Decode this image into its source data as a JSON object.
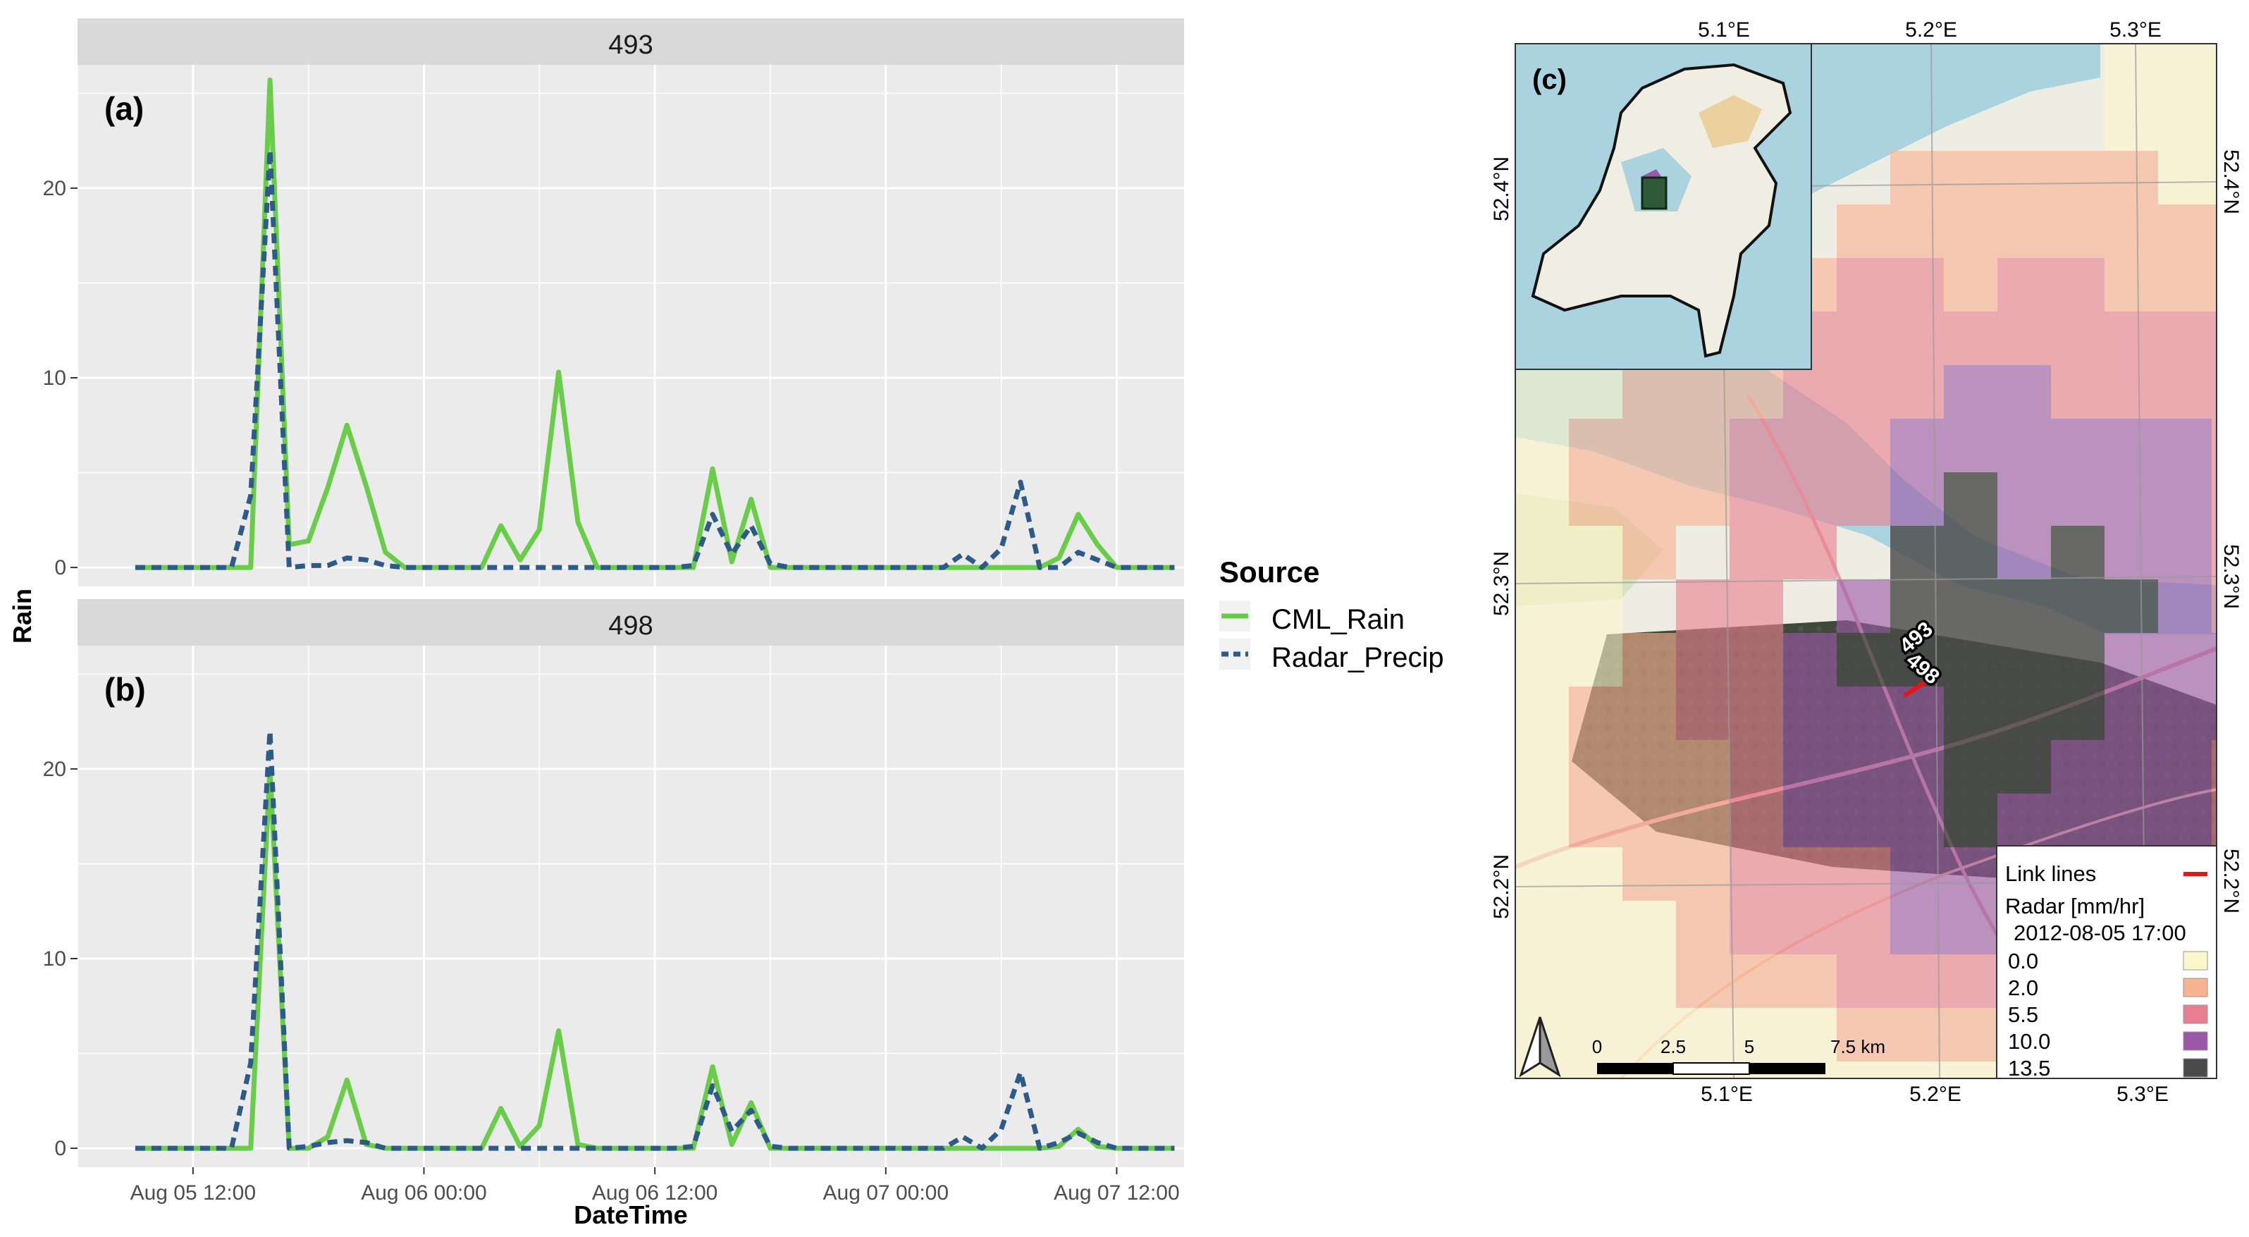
{
  "chart_data": [
    {
      "type": "line",
      "panel_title": "493",
      "panel_tag": "(a)",
      "ylabel": "Rain",
      "xlabel": "DateTime",
      "ylim": [
        -1,
        26.5
      ],
      "yticks": [
        0,
        10,
        20
      ],
      "xlim": [
        0,
        57.5
      ],
      "xtick_positions": [
        6,
        18,
        30,
        42,
        54
      ],
      "xtick_labels": [
        "Aug 05 12:00",
        "Aug 06 00:00",
        "Aug 06 12:00",
        "Aug 07 00:00",
        "Aug 07 12:00"
      ],
      "x": [
        3,
        4,
        5,
        6,
        7,
        8,
        9,
        10,
        11,
        12,
        13,
        14,
        15,
        16,
        17,
        18,
        19,
        20,
        21,
        22,
        23,
        24,
        25,
        26,
        27,
        28,
        29,
        30,
        31,
        32,
        33,
        34,
        35,
        36,
        37,
        38,
        39,
        40,
        41,
        42,
        43,
        44,
        45,
        46,
        47,
        48,
        49,
        50,
        51,
        52,
        53,
        54,
        55,
        56,
        57
      ],
      "series": [
        {
          "name": "CML_Rain",
          "color": "#6ACD4A",
          "dash": "solid",
          "values": [
            0,
            0,
            0,
            0,
            0,
            0,
            0,
            25.7,
            1.2,
            1.4,
            4.2,
            7.5,
            4.3,
            0.8,
            0,
            0,
            0,
            0,
            0,
            2.2,
            0.4,
            2.0,
            10.3,
            2.4,
            0,
            0,
            0,
            0,
            0,
            0,
            5.2,
            0.3,
            3.6,
            0,
            0,
            0,
            0,
            0,
            0,
            0,
            0,
            0,
            0,
            0,
            0,
            0,
            0,
            0,
            0.5,
            2.8,
            1.2,
            0,
            0,
            0,
            0
          ]
        },
        {
          "name": "Radar_Precip",
          "color": "#2E5A87",
          "dash": "dashed",
          "values": [
            0,
            0,
            0,
            0,
            0,
            0,
            3.8,
            22.0,
            0,
            0.1,
            0.1,
            0.5,
            0.4,
            0.1,
            0,
            0,
            0,
            0,
            0,
            0,
            0,
            0,
            0,
            0,
            0,
            0,
            0,
            0,
            0,
            0.1,
            2.8,
            0.7,
            2.2,
            0.2,
            0,
            0,
            0,
            0,
            0,
            0,
            0,
            0,
            0,
            0.7,
            0,
            1.0,
            4.5,
            0,
            0,
            0.8,
            0.4,
            0,
            0,
            0,
            0
          ]
        }
      ]
    },
    {
      "type": "line",
      "panel_title": "498",
      "panel_tag": "(b)",
      "ylabel": "Rain",
      "xlabel": "DateTime",
      "ylim": [
        -1,
        26.5
      ],
      "yticks": [
        0,
        10,
        20
      ],
      "xlim": [
        0,
        57.5
      ],
      "xtick_positions": [
        6,
        18,
        30,
        42,
        54
      ],
      "xtick_labels": [
        "Aug 05 12:00",
        "Aug 06 00:00",
        "Aug 06 12:00",
        "Aug 07 00:00",
        "Aug 07 12:00"
      ],
      "x": [
        3,
        4,
        5,
        6,
        7,
        8,
        9,
        10,
        11,
        12,
        13,
        14,
        15,
        16,
        17,
        18,
        19,
        20,
        21,
        22,
        23,
        24,
        25,
        26,
        27,
        28,
        29,
        30,
        31,
        32,
        33,
        34,
        35,
        36,
        37,
        38,
        39,
        40,
        41,
        42,
        43,
        44,
        45,
        46,
        47,
        48,
        49,
        50,
        51,
        52,
        53,
        54,
        55,
        56,
        57
      ],
      "series": [
        {
          "name": "CML_Rain",
          "color": "#6ACD4A",
          "dash": "solid",
          "values": [
            0,
            0,
            0,
            0,
            0,
            0,
            0,
            20.0,
            0,
            0,
            0.6,
            3.6,
            0.2,
            0,
            0,
            0,
            0,
            0,
            0,
            2.1,
            0.1,
            1.2,
            6.2,
            0.2,
            0,
            0,
            0,
            0,
            0,
            0,
            4.3,
            0.2,
            2.4,
            0,
            0,
            0,
            0,
            0,
            0,
            0,
            0,
            0,
            0,
            0,
            0,
            0,
            0,
            0,
            0.1,
            1.0,
            0.1,
            0,
            0,
            0,
            0
          ]
        },
        {
          "name": "Radar_Precip",
          "color": "#2E5A87",
          "dash": "dashed",
          "values": [
            0,
            0,
            0,
            0,
            0,
            0,
            4.5,
            22.0,
            0,
            0.1,
            0.3,
            0.4,
            0.3,
            0,
            0,
            0,
            0,
            0,
            0,
            0,
            0,
            0,
            0,
            0,
            0,
            0,
            0,
            0,
            0,
            0.1,
            3.3,
            0.9,
            2.0,
            0.1,
            0,
            0,
            0,
            0,
            0,
            0,
            0,
            0,
            0,
            0.6,
            0,
            1.0,
            4.0,
            0,
            0.3,
            0.8,
            0.3,
            0,
            0,
            0,
            0
          ]
        }
      ]
    }
  ],
  "legend": {
    "title": "Source",
    "items": [
      "CML_Rain",
      "Radar_Precip"
    ]
  },
  "map": {
    "panel_tag": "(c)",
    "top_lon_labels": [
      "5.1°E",
      "5.2°E",
      "5.3°E"
    ],
    "bottom_lon_labels": [
      "5.1°E",
      "5.2°E",
      "5.3°E"
    ],
    "left_lat_labels": [
      "52.4°N",
      "52.3°N",
      "52.2°N"
    ],
    "right_lat_labels": [
      "52.4°N",
      "52.3°N",
      "52.2°N"
    ],
    "link_labels": [
      "493",
      "498"
    ],
    "scale_labels": [
      "0",
      "2.5",
      "5",
      "7.5 km"
    ],
    "legend": {
      "link_lines": "Link lines",
      "radar_title": "Radar [mm/hr]",
      "datetime": "2012-08-05 17:00",
      "classes": [
        {
          "label": "0.0",
          "color": "#FCF6CB"
        },
        {
          "label": "2.0",
          "color": "#F7B291"
        },
        {
          "label": "5.5",
          "color": "#E87F8F"
        },
        {
          "label": "10.0",
          "color": "#9B58A6"
        },
        {
          "label": "13.5",
          "color": "#4A4A4A"
        }
      ],
      "link_color": "#E8141A"
    },
    "colors": {
      "water": "#AAD3DF",
      "land": "#EEEDE4",
      "field": "#D7E3C1"
    }
  }
}
